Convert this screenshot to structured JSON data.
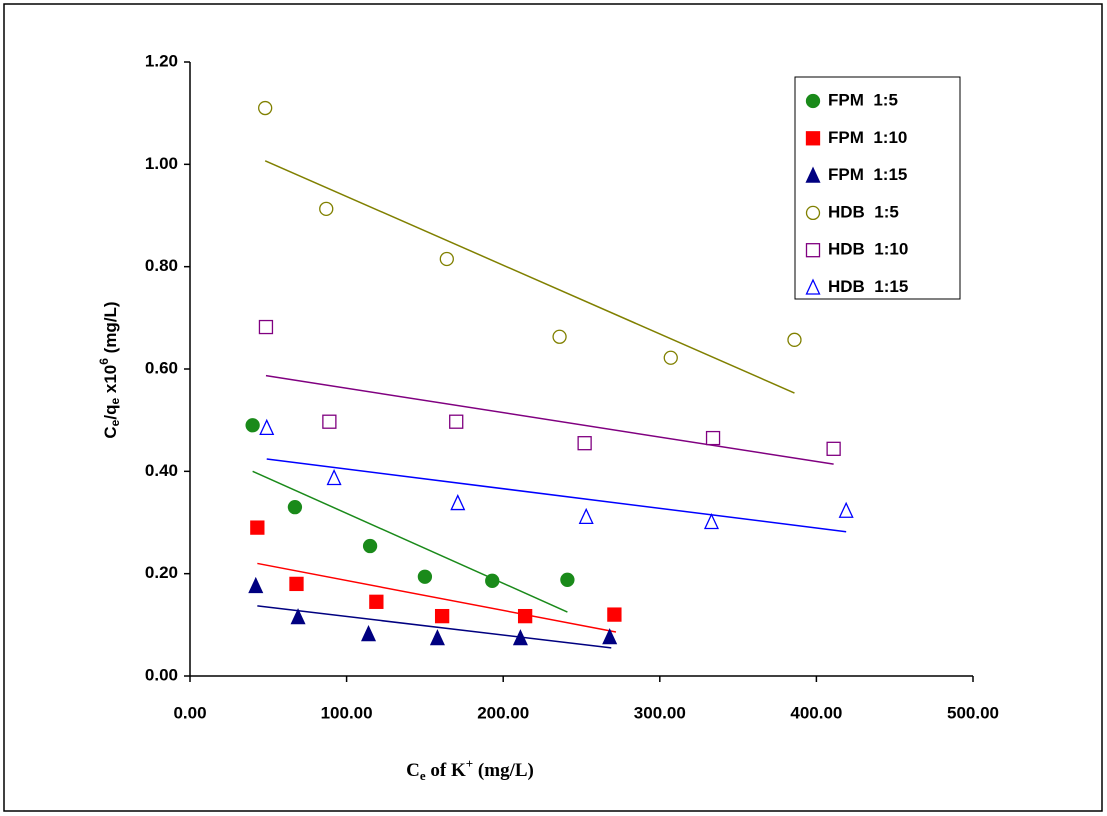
{
  "chart_data": {
    "type": "scatter",
    "x_label": [
      "C",
      "e",
      " of K",
      "+",
      "  (mg/L)"
    ],
    "y_label": [
      "C",
      "e",
      "/q",
      "e",
      " x10",
      "6",
      " (mg/L)"
    ],
    "xlim": [
      0,
      500
    ],
    "xticks": [
      {
        "value": 0,
        "label": "0.00"
      },
      {
        "value": 100,
        "label": "100.00"
      },
      {
        "value": 200,
        "label": "200.00"
      },
      {
        "value": 300,
        "label": "300.00"
      },
      {
        "value": 400,
        "label": "400.00"
      },
      {
        "value": 500,
        "label": "500.00"
      }
    ],
    "ylim": [
      0,
      1.2
    ],
    "yticks": [
      {
        "value": 0,
        "label": "0.00"
      },
      {
        "value": 0.2,
        "label": "0.20"
      },
      {
        "value": 0.4,
        "label": "0.40"
      },
      {
        "value": 0.6,
        "label": "0.60"
      },
      {
        "value": 0.8,
        "label": "0.80"
      },
      {
        "value": 1.0,
        "label": "1.00"
      },
      {
        "value": 1.2,
        "label": "1.20"
      }
    ],
    "legend": "top-right",
    "series": [
      {
        "name": "FPM  1:5",
        "color": "#1a8a1a",
        "marker": "circle",
        "filled": true,
        "x": [
          40,
          67,
          115,
          150,
          193,
          241
        ],
        "values": [
          0.49,
          0.33,
          0.254,
          0.194,
          0.186,
          0.188
        ],
        "trendline": {
          "x": [
            40,
            241
          ],
          "values": [
            0.4,
            0.125
          ]
        }
      },
      {
        "name": "FPM  1:10",
        "color": "#ff0000",
        "marker": "square",
        "filled": true,
        "x": [
          43,
          68,
          119,
          161,
          214,
          271
        ],
        "values": [
          0.29,
          0.18,
          0.145,
          0.117,
          0.117,
          0.12
        ],
        "trendline": {
          "x": [
            43,
            272
          ],
          "values": [
            0.22,
            0.086
          ]
        }
      },
      {
        "name": "FPM  1:15",
        "color": "#000080",
        "marker": "triangle",
        "filled": true,
        "x": [
          42,
          69,
          114,
          158,
          211,
          268
        ],
        "values": [
          0.176,
          0.115,
          0.082,
          0.074,
          0.074,
          0.076
        ],
        "trendline": {
          "x": [
            43,
            269
          ],
          "values": [
            0.137,
            0.055
          ]
        }
      },
      {
        "name": "HDB  1:5",
        "color": "#808000",
        "marker": "circle",
        "filled": false,
        "x": [
          48,
          87,
          164,
          236,
          307,
          386
        ],
        "values": [
          1.11,
          0.913,
          0.815,
          0.663,
          0.622,
          0.657
        ],
        "trendline": {
          "x": [
            48,
            386
          ],
          "values": [
            1.007,
            0.553
          ]
        }
      },
      {
        "name": "HDB  1:10",
        "color": "#800080",
        "marker": "square",
        "filled": false,
        "x": [
          48.5,
          89,
          170,
          252,
          334,
          411
        ],
        "values": [
          0.682,
          0.497,
          0.497,
          0.455,
          0.465,
          0.444
        ],
        "trendline": {
          "x": [
            48.5,
            411
          ],
          "values": [
            0.587,
            0.414
          ]
        }
      },
      {
        "name": "HDB  1:15",
        "color": "#0000ff",
        "marker": "triangle",
        "filled": false,
        "x": [
          49,
          92,
          171,
          253,
          333,
          419
        ],
        "values": [
          0.485,
          0.387,
          0.338,
          0.311,
          0.301,
          0.323
        ],
        "trendline": {
          "x": [
            49,
            419
          ],
          "values": [
            0.424,
            0.282
          ]
        }
      }
    ]
  }
}
